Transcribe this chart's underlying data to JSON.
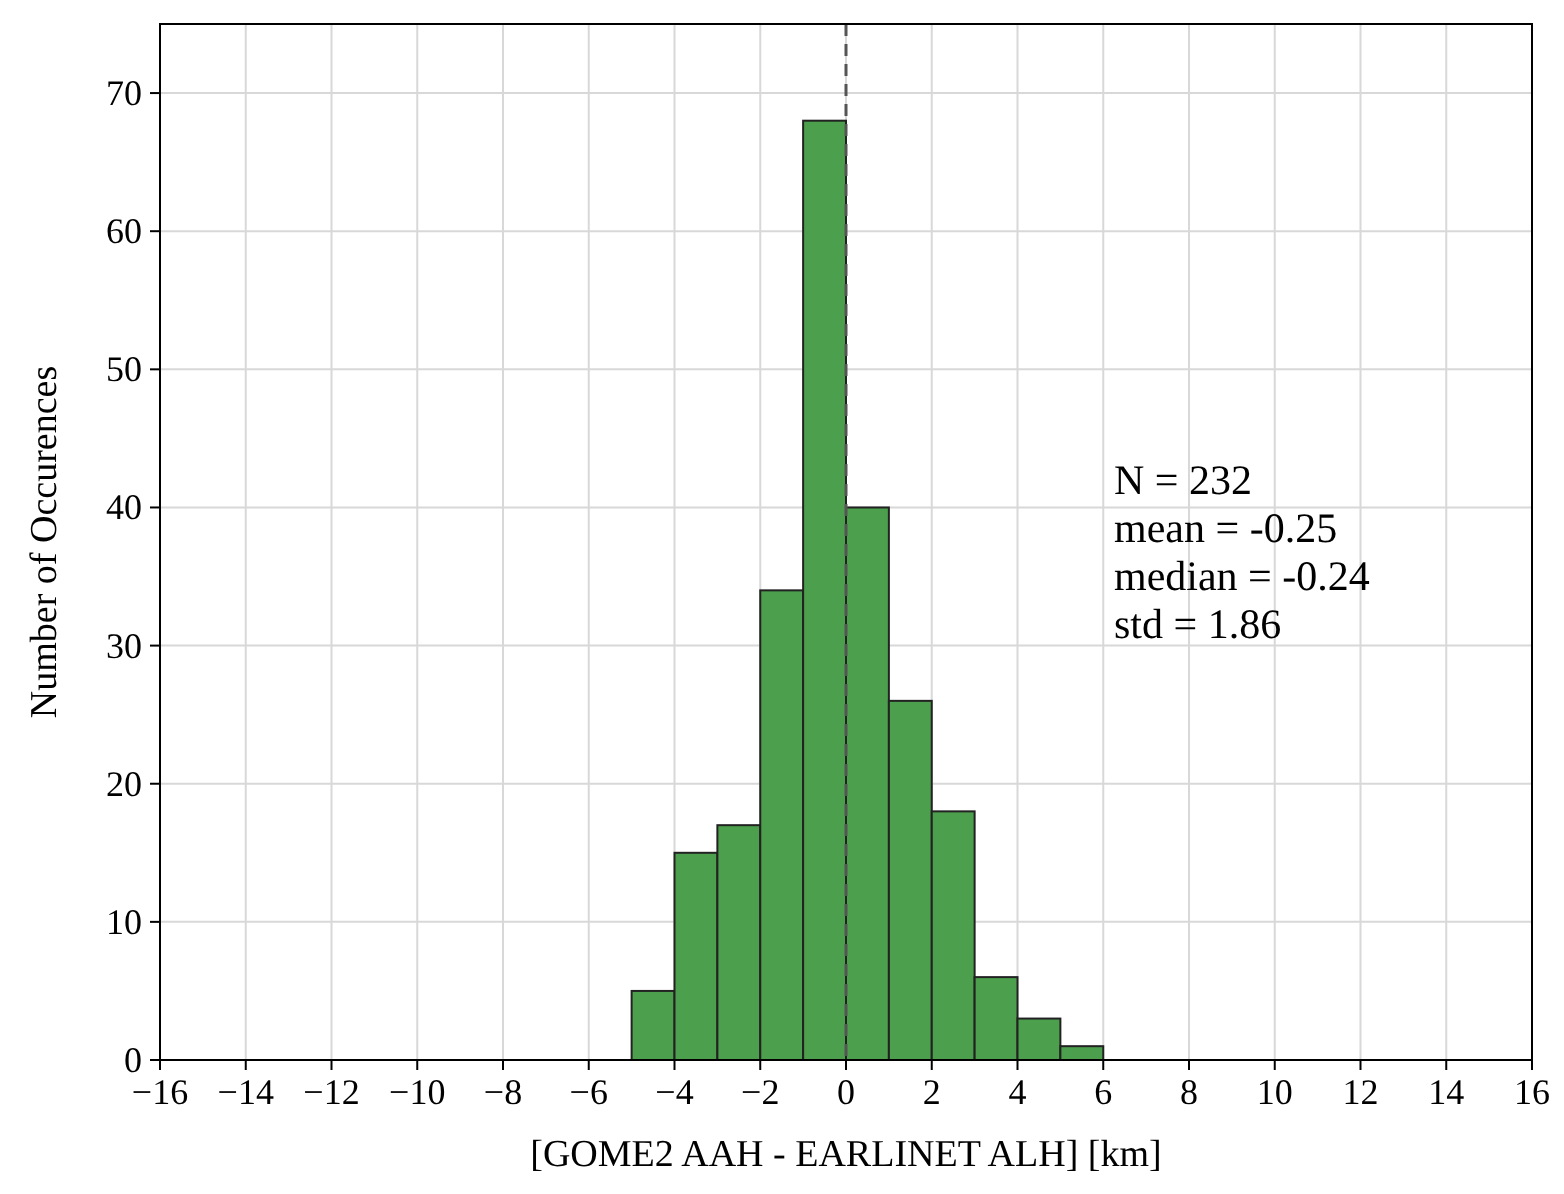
{
  "chart_data": {
    "type": "histogram",
    "xlabel": "[GOME2 AAH - EARLINET ALH] [km]",
    "ylabel": "Number of Occurences",
    "bins": [
      -5,
      -4,
      -3,
      -2,
      -1,
      0,
      1,
      2,
      3,
      4,
      5,
      6
    ],
    "values": [
      5,
      15,
      17,
      34,
      68,
      40,
      26,
      18,
      6,
      3,
      1
    ],
    "color": "#4c9f4c",
    "xlim": [
      -16,
      16
    ],
    "xticks": [
      -16,
      -14,
      -12,
      -10,
      -8,
      -6,
      -4,
      -2,
      0,
      2,
      4,
      6,
      8,
      10,
      12,
      14,
      16
    ],
    "ylim": [
      0,
      75
    ],
    "yticks": [
      0,
      10,
      20,
      30,
      40,
      50,
      60,
      70
    ],
    "grid": true,
    "ref_lines": [
      {
        "axis": "x",
        "value": 0,
        "color": "#555555",
        "line_style": "dashed"
      }
    ],
    "annotations": [
      "N = 232",
      "mean = -0.25",
      "median = -0.24",
      "std = 1.86"
    ]
  }
}
